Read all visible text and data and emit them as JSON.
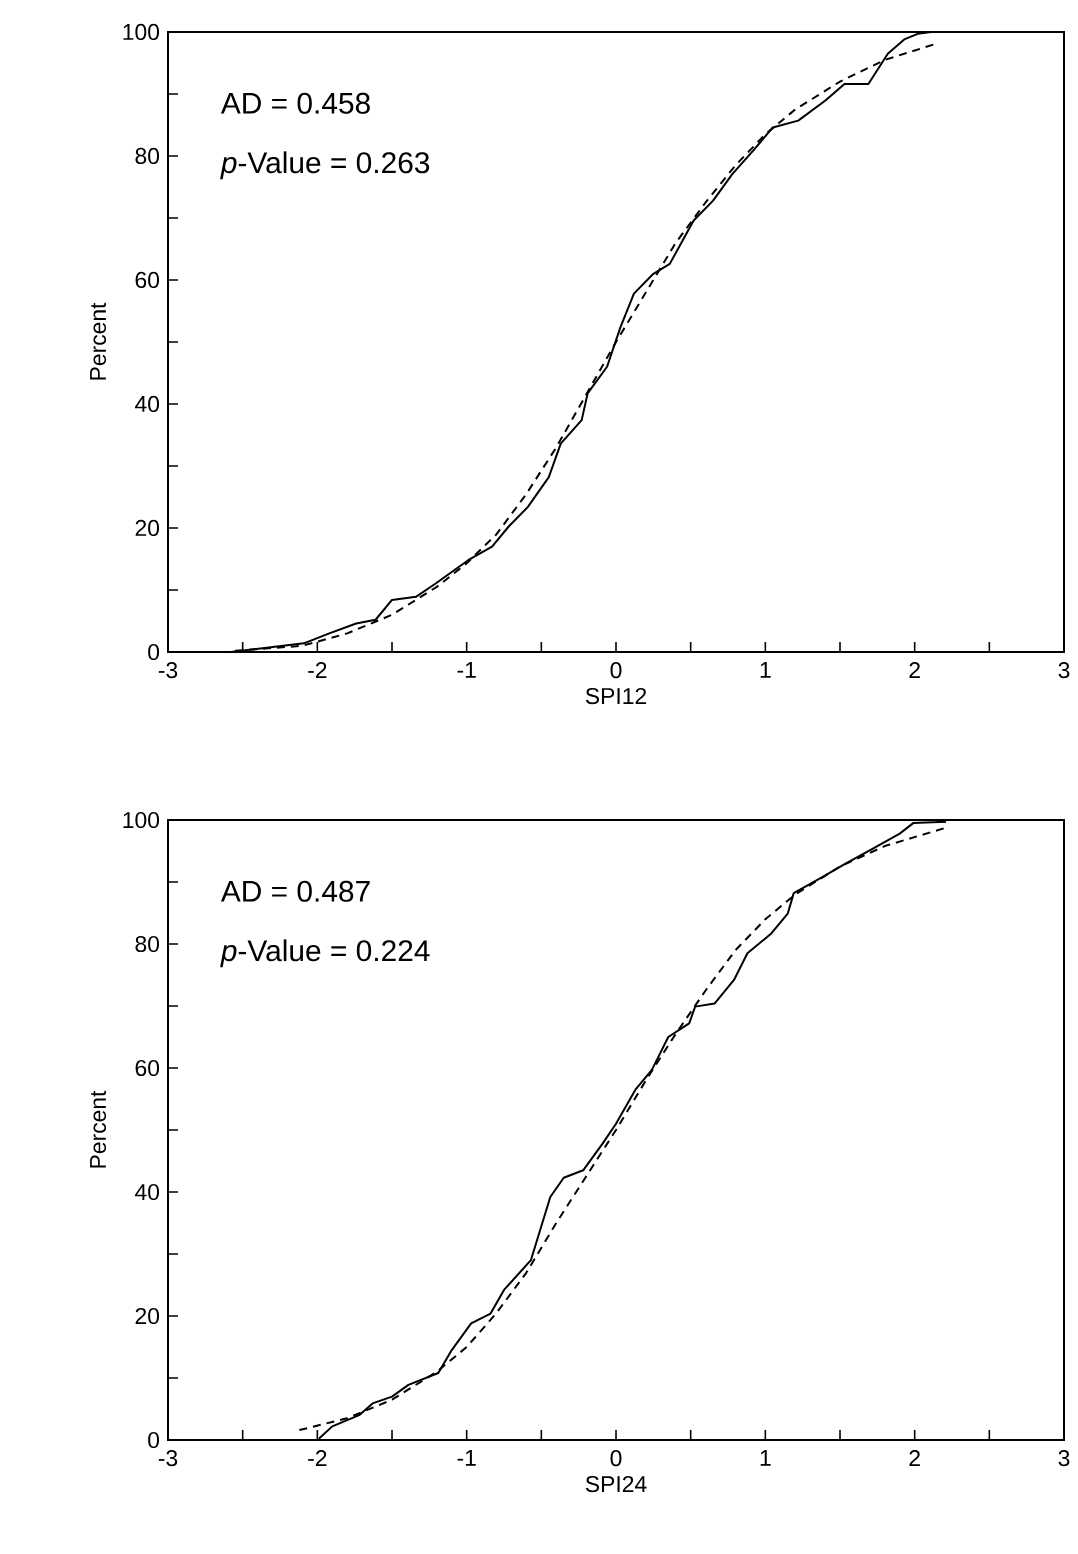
{
  "chart_data": [
    {
      "type": "line",
      "xlabel": "SPI12",
      "ylabel": "Percent",
      "annotations": [
        "AD = 0.458",
        "*p*-Value = 0.263"
      ],
      "xlim": [
        -3,
        3
      ],
      "ylim": [
        0,
        100
      ],
      "xticks": [
        -3,
        {
          "value": -2.5,
          "label": null
        },
        -2,
        {
          "value": -1.5,
          "label": null
        },
        -1,
        {
          "value": -0.5,
          "label": null
        },
        0,
        {
          "value": 0.5,
          "label": null
        },
        1,
        {
          "value": 1.5,
          "label": null
        },
        2,
        {
          "value": 2.5,
          "label": null
        },
        3
      ],
      "yticks": [
        0,
        {
          "value": 10,
          "label": null
        },
        20,
        {
          "value": 30,
          "label": null
        },
        40,
        {
          "value": 50,
          "label": null
        },
        60,
        {
          "value": 70,
          "label": null
        },
        80,
        {
          "value": 90,
          "label": null
        },
        100
      ],
      "grid": false,
      "marker": "none",
      "series": [
        {
          "color": "#000000",
          "line_style": "solid",
          "x": [
            -2.58,
            -2.09,
            -1.92,
            -1.74,
            -1.61,
            -1.5,
            -1.34,
            -1.21,
            -0.99,
            -0.83,
            -0.72,
            -0.59,
            -0.45,
            -0.37,
            -0.23,
            -0.19,
            -0.06,
            0.03,
            0.12,
            0.25,
            0.36,
            0.52,
            0.65,
            0.78,
            0.92,
            1.05,
            1.22,
            1.4,
            1.53,
            1.69,
            1.82,
            1.93,
            2.02,
            2.11
          ],
          "values": [
            0,
            1.4,
            3,
            4.6,
            5.2,
            8.4,
            8.9,
            11,
            14.8,
            17,
            20.2,
            23.4,
            28.2,
            33.6,
            37.4,
            41.7,
            46,
            52.4,
            57.8,
            61,
            62.6,
            69.6,
            72.8,
            77.1,
            80.9,
            84.6,
            85.7,
            88.9,
            91.6,
            91.6,
            96.5,
            98.8,
            99.7,
            100
          ]
        },
        {
          "color": "#000000",
          "line_style": "dashed",
          "x": [
            -2.55,
            -2.1,
            -1.8,
            -1.5,
            -1.2,
            -1,
            -0.8,
            -0.6,
            -0.4,
            -0.2,
            0,
            0.2,
            0.4,
            0.6,
            0.8,
            1,
            1.2,
            1.5,
            1.8,
            2.13
          ],
          "values": [
            0.2,
            1,
            3,
            6,
            10.5,
            14.3,
            19,
            25.5,
            33,
            41.5,
            50,
            58,
            66,
            72.5,
            78.5,
            83.5,
            87.5,
            92,
            95.5,
            98
          ]
        }
      ]
    },
    {
      "type": "line",
      "xlabel": "SPI24",
      "ylabel": "Percent",
      "annotations": [
        "AD = 0.487",
        "*p*-Value = 0.224"
      ],
      "xlim": [
        -3,
        3
      ],
      "ylim": [
        0,
        100
      ],
      "xticks": [
        -3,
        {
          "value": -2.5,
          "label": null
        },
        -2,
        {
          "value": -1.5,
          "label": null
        },
        -1,
        {
          "value": -0.5,
          "label": null
        },
        0,
        {
          "value": 0.5,
          "label": null
        },
        1,
        {
          "value": 1.5,
          "label": null
        },
        2,
        {
          "value": 2.5,
          "label": null
        },
        3
      ],
      "yticks": [
        0,
        {
          "value": 10,
          "label": null
        },
        20,
        {
          "value": 30,
          "label": null
        },
        40,
        {
          "value": 50,
          "label": null
        },
        60,
        {
          "value": 70,
          "label": null
        },
        80,
        {
          "value": 90,
          "label": null
        },
        100
      ],
      "grid": false,
      "marker": "none",
      "series": [
        {
          "color": "#000000",
          "line_style": "solid",
          "x": [
            -1.99,
            -1.9,
            -1.72,
            -1.63,
            -1.5,
            -1.39,
            -1.19,
            -1.1,
            -0.97,
            -0.84,
            -0.75,
            -0.57,
            -0.44,
            -0.35,
            -0.22,
            -0.09,
            0,
            0.13,
            0.24,
            0.35,
            0.49,
            0.53,
            0.66,
            0.79,
            0.88,
            1.04,
            1.15,
            1.19,
            1.39,
            1.54,
            1.72,
            1.9,
            1.99,
            2.21
          ],
          "values": [
            0.2,
            2.2,
            4,
            5.9,
            7,
            8.9,
            10.8,
            14.5,
            18.8,
            20.4,
            24.2,
            29,
            39.2,
            42.3,
            43.5,
            47.8,
            51,
            56.5,
            59.7,
            65,
            67.2,
            69.9,
            70.4,
            74.2,
            78.5,
            81.7,
            84.9,
            88.2,
            90.9,
            93,
            95.4,
            97.8,
            99.5,
            99.7
          ]
        },
        {
          "color": "#000000",
          "line_style": "dashed",
          "x": [
            -2.12,
            -1.8,
            -1.5,
            -1.2,
            -1,
            -0.8,
            -0.6,
            -0.4,
            -0.2,
            0,
            0.2,
            0.4,
            0.6,
            0.8,
            1,
            1.2,
            1.5,
            1.8,
            2.23
          ],
          "values": [
            1.6,
            3.5,
            6.5,
            11,
            15,
            20.5,
            27,
            35,
            42.5,
            50,
            58,
            65.5,
            72.5,
            79,
            84,
            88,
            92.5,
            95.8,
            98.9
          ]
        }
      ]
    }
  ]
}
